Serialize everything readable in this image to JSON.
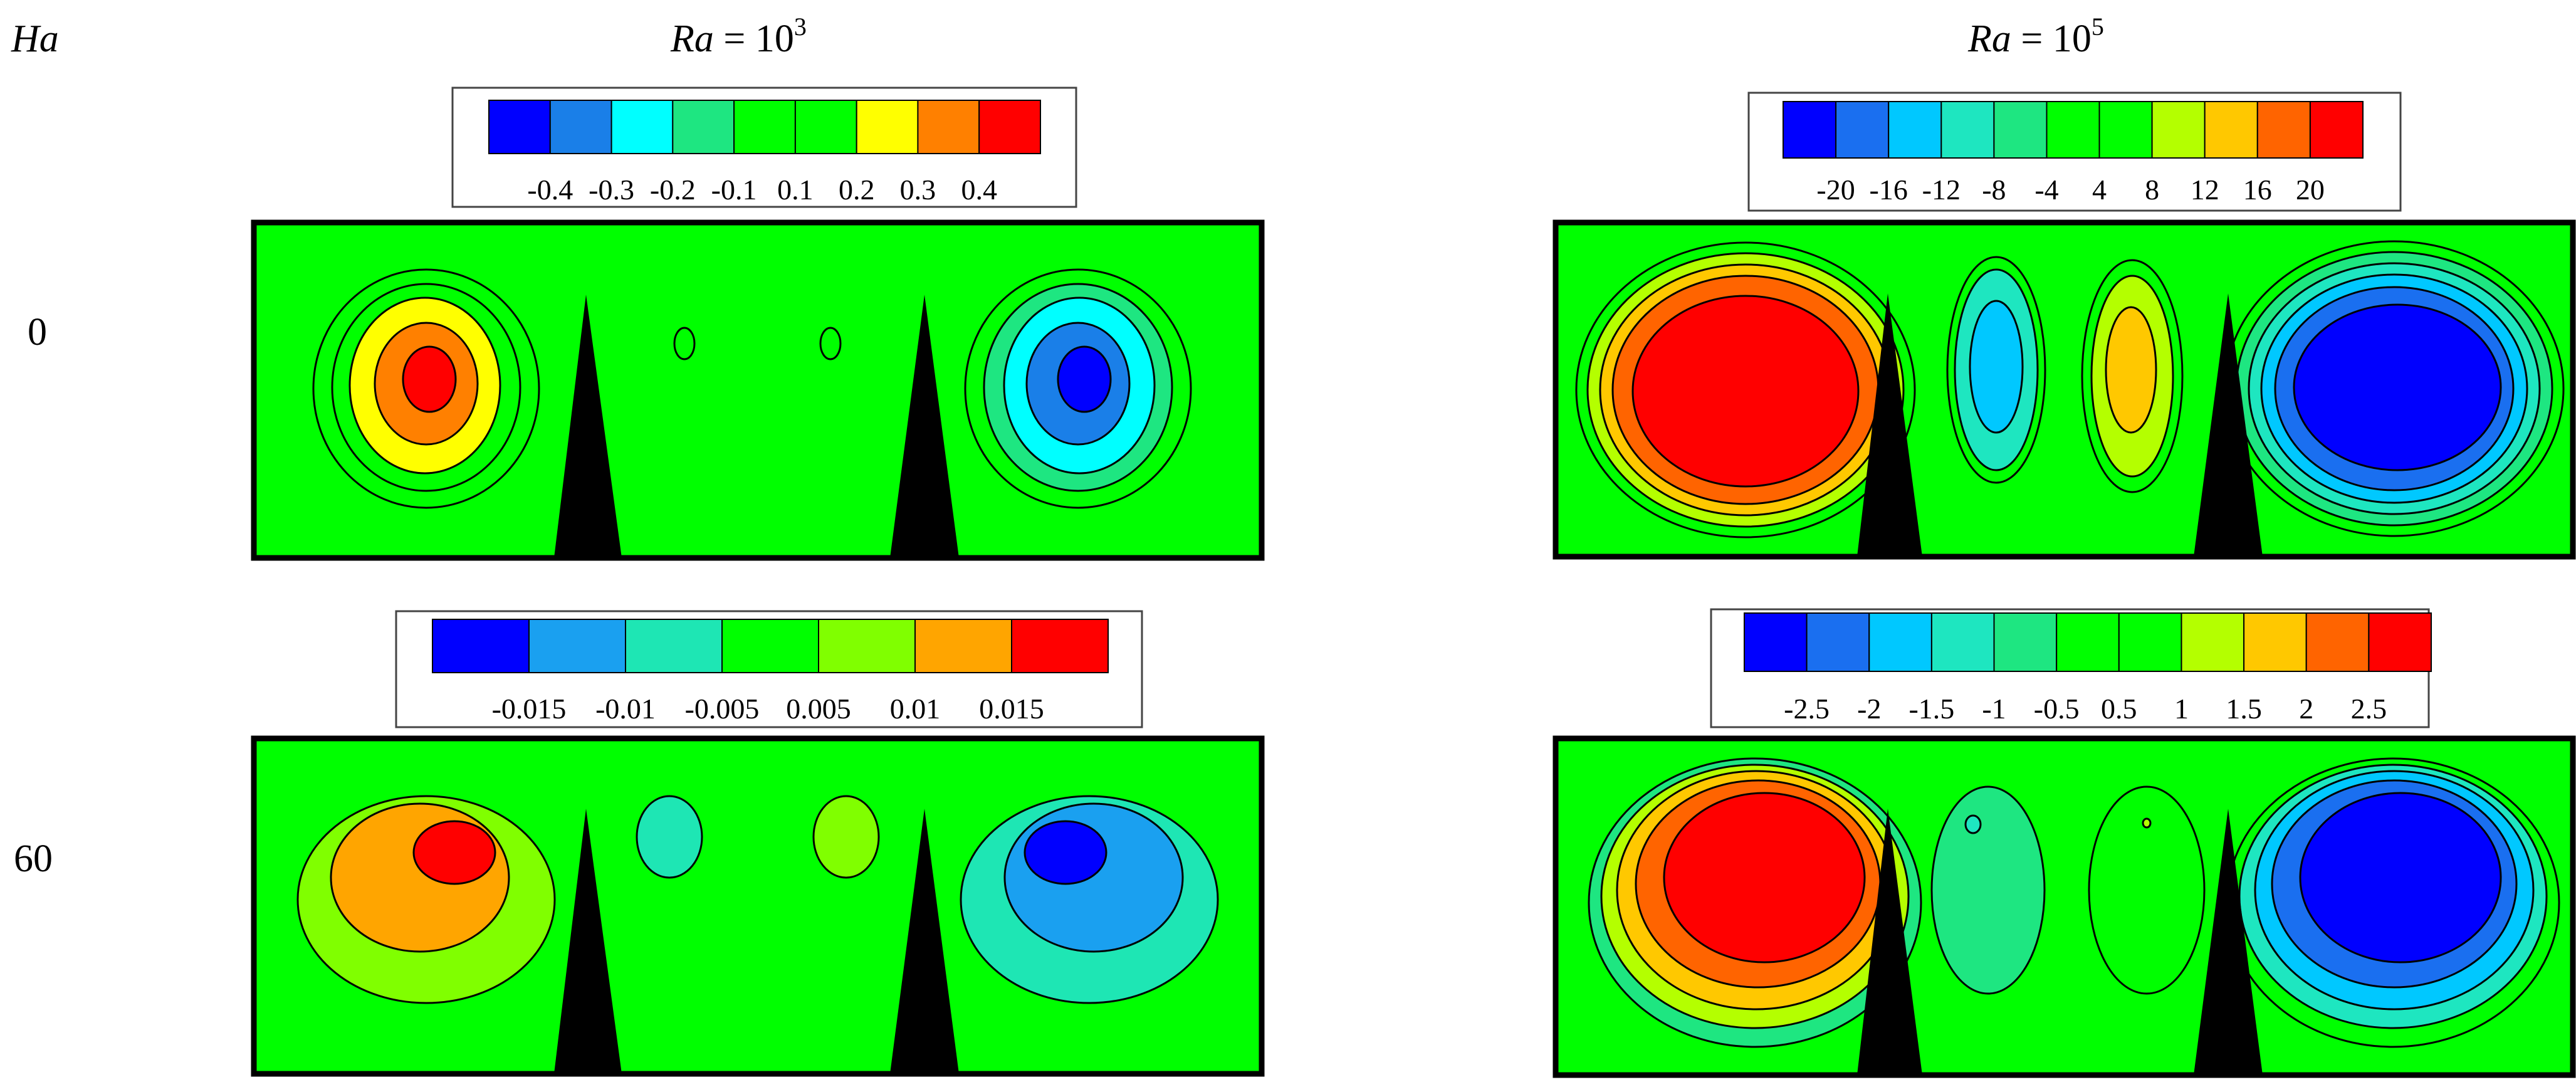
{
  "row_header": "Ha",
  "column_headers": [
    {
      "base": "Ra",
      "eq": " = 10",
      "exp": "3"
    },
    {
      "base": "Ra",
      "eq": " = 10",
      "exp": "5"
    }
  ],
  "row_labels": [
    "0",
    "60"
  ],
  "legends": [
    {
      "panel": "Ra=10^3, Ha=0",
      "colors": [
        "#0000ff",
        "#1a7fe8",
        "#00ffff",
        "#1ee681",
        "#00ff00",
        "#00ff00",
        "#ffff00",
        "#ff8000",
        "#ff0000"
      ],
      "labels": [
        "-0.4",
        "-0.3",
        "-0.2",
        "-0.1",
        "0.1",
        "0.2",
        "0.3",
        "0.4"
      ]
    },
    {
      "panel": "Ra=10^5, Ha=0",
      "colors": [
        "#0000ff",
        "#1a6ff0",
        "#00c8ff",
        "#1ee6c0",
        "#1ee681",
        "#00ff00",
        "#00ff00",
        "#b4ff00",
        "#ffc800",
        "#ff6400",
        "#ff0000"
      ],
      "labels": [
        "-20",
        "-16",
        "-12",
        "-8",
        "-4",
        "4",
        "8",
        "12",
        "16",
        "20"
      ]
    },
    {
      "panel": "Ra=10^3, Ha=60",
      "colors": [
        "#0000ff",
        "#1aa0f0",
        "#1ee6b4",
        "#00ff00",
        "#80ff00",
        "#ffa500",
        "#ff0000"
      ],
      "labels": [
        "-0.015",
        "-0.01",
        "-0.005",
        "0.005",
        "0.01",
        "0.015"
      ]
    },
    {
      "panel": "Ra=10^5, Ha=60",
      "colors": [
        "#0000ff",
        "#1a6ff0",
        "#00c8ff",
        "#1ee6c0",
        "#1ee681",
        "#00ff00",
        "#00ff00",
        "#b4ff00",
        "#ffc800",
        "#ff6400",
        "#ff0000"
      ],
      "labels": [
        "-2.5",
        "-2",
        "-1.5",
        "-1",
        "-0.5",
        "0.5",
        "1",
        "1.5",
        "2",
        "2.5"
      ]
    }
  ],
  "colors": {
    "background": "#00ff00",
    "obstacle": "#000000",
    "contour_line": "#000000"
  }
}
